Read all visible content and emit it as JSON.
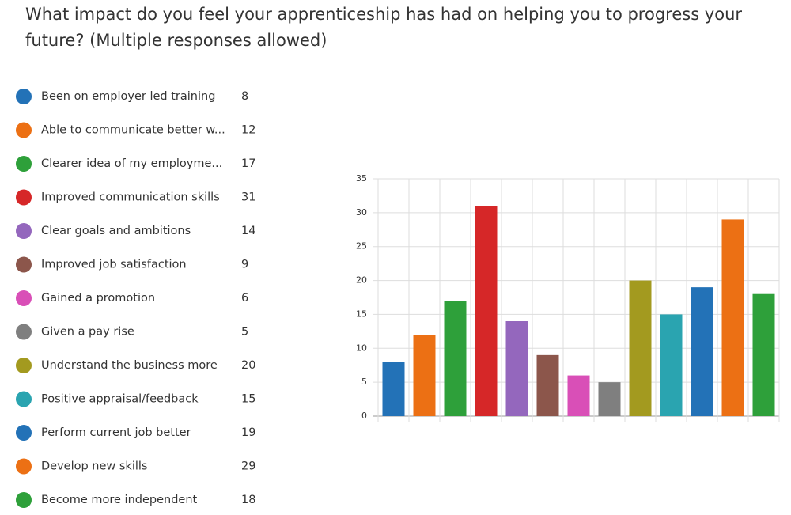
{
  "chart_data": {
    "type": "bar",
    "title": "What impact do you feel your apprenticeship has had on helping you to progress your future? (Multiple responses allowed)",
    "categories": [
      "Been on employer led training",
      "Able to communicate better w...",
      "Clearer idea of my employme...",
      "Improved communication skills",
      "Clear goals and ambitions",
      "Improved job satisfaction",
      "Gained a promotion",
      "Given a pay rise",
      "Understand the business more",
      "Positive appraisal/feedback",
      "Perform current job better",
      "Develop new skills",
      "Become more independent"
    ],
    "values": [
      8,
      12,
      17,
      31,
      14,
      9,
      6,
      5,
      20,
      15,
      19,
      29,
      18
    ],
    "colors": [
      "#2372b7",
      "#ec7014",
      "#2ea03a",
      "#d62728",
      "#9467bd",
      "#8c564b",
      "#d94fb7",
      "#7f7f7f",
      "#a39a1f",
      "#2aa4b0",
      "#2372b7",
      "#ec7014",
      "#2ea03a"
    ],
    "ylim": [
      0,
      35
    ],
    "yticks": [
      0,
      5,
      10,
      15,
      20,
      25,
      30,
      35
    ],
    "grid": true
  }
}
